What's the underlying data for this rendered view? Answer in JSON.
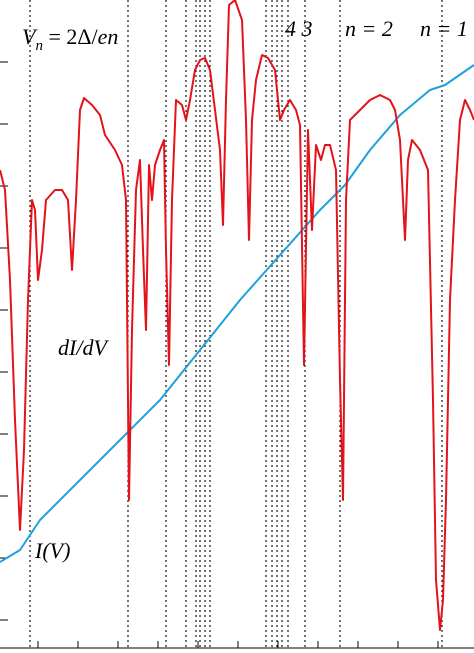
{
  "chart_data": {
    "type": "line",
    "title": [
      "V",
      "n",
      " = 2Δ/",
      "en"
    ],
    "annotations": [
      {
        "text": "4 3",
        "x": 285,
        "y": 584
      },
      {
        "text": "n = 2",
        "x": 345,
        "y": 584
      },
      {
        "text": "n = 1",
        "x": 420,
        "y": 584
      },
      {
        "text": "dI/dV",
        "x": 58,
        "y": 265
      },
      {
        "text": "I(V)",
        "x": 35,
        "y": 62
      }
    ],
    "xlim": [
      0,
      474
    ],
    "ylim": [
      -33,
      620
    ],
    "xticks": [
      38,
      78,
      118,
      158,
      198,
      238,
      278,
      318,
      358,
      398,
      438
    ],
    "yticks": [
      0,
      62,
      124,
      186,
      248,
      310,
      372,
      434,
      496,
      558
    ],
    "vlines": [
      30,
      128,
      166,
      186,
      196,
      200,
      205,
      210,
      266,
      272,
      277,
      282,
      288,
      305,
      340,
      442
    ],
    "series": [
      {
        "name": "dI/dV",
        "color": "#e3131b",
        "x": [
          0,
          5,
          10,
          15,
          20,
          24,
          28,
          32,
          35,
          38,
          42,
          46,
          55,
          62,
          68,
          72,
          76,
          80,
          84,
          92,
          100,
          105,
          115,
          122,
          126,
          129,
          132,
          136,
          140,
          143,
          146,
          149,
          152,
          155,
          160,
          164,
          166,
          169,
          172,
          176,
          182,
          186,
          190,
          195,
          200,
          205,
          210,
          215,
          220,
          223,
          226,
          229,
          235,
          242,
          246,
          249,
          252,
          256,
          262,
          268,
          275,
          280,
          284,
          290,
          296,
          300,
          304,
          308,
          312,
          316,
          321,
          325,
          330,
          336,
          340,
          343,
          346,
          350,
          360,
          370,
          380,
          390,
          395,
          400,
          405,
          408,
          412,
          420,
          428,
          433,
          436,
          440,
          443,
          446,
          450,
          455,
          460,
          465,
          470,
          474
        ],
        "values": [
          450,
          430,
          340,
          200,
          90,
          170,
          320,
          420,
          410,
          340,
          370,
          420,
          430,
          430,
          420,
          350,
          420,
          510,
          522,
          515,
          505,
          485,
          470,
          455,
          420,
          120,
          290,
          430,
          460,
          370,
          290,
          455,
          420,
          455,
          470,
          480,
          370,
          255,
          420,
          520,
          515,
          500,
          520,
          550,
          560,
          562,
          550,
          510,
          470,
          395,
          520,
          615,
          620,
          600,
          500,
          380,
          500,
          540,
          565,
          562,
          550,
          500,
          510,
          520,
          510,
          495,
          255,
          490,
          390,
          475,
          460,
          475,
          475,
          450,
          240,
          120,
          420,
          500,
          510,
          520,
          525,
          520,
          510,
          480,
          380,
          460,
          480,
          470,
          450,
          220,
          40,
          -10,
          20,
          120,
          320,
          420,
          500,
          520,
          510,
          500
        ]
      },
      {
        "name": "I(V)",
        "color": "#1ea0dc",
        "x": [
          0,
          20,
          40,
          80,
          120,
          160,
          200,
          240,
          280,
          320,
          345,
          370,
          400,
          430,
          445,
          474
        ],
        "values": [
          58,
          70,
          100,
          140,
          180,
          220,
          270,
          320,
          365,
          410,
          435,
          470,
          505,
          530,
          535,
          555
        ]
      }
    ]
  }
}
